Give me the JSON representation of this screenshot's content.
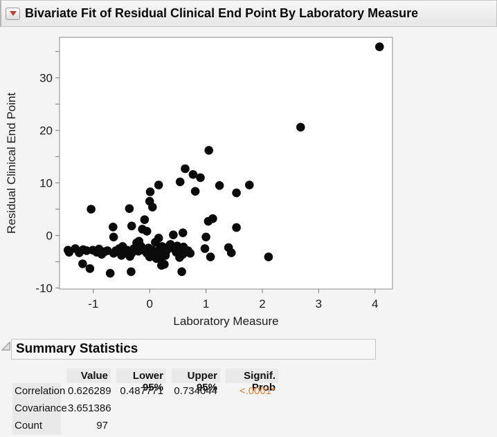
{
  "window": {
    "title": "Bivariate Fit of Residual Clinical End Point By Laboratory Measure"
  },
  "chart_data": {
    "type": "scatter",
    "xlabel": "Laboratory Measure",
    "ylabel": "Residual Clinical End Point",
    "xlim": [
      -1.6,
      4.31
    ],
    "ylim": [
      -10.2,
      37.7
    ],
    "x_ticks": [
      -1,
      0,
      1,
      2,
      3,
      4
    ],
    "y_ticks": [
      -10,
      0,
      10,
      20,
      30
    ],
    "y_minor_ticks": [
      -5,
      5,
      15,
      25,
      35
    ],
    "grid": false,
    "marker_color": "#0a0a0a",
    "frame_color": "#a3a3a3",
    "plot_bg": "#ffffff",
    "points": [
      [
        4.08,
        35.9
      ],
      [
        2.68,
        20.6
      ],
      [
        1.05,
        16.2
      ],
      [
        0.63,
        12.7
      ],
      [
        0.77,
        11.6
      ],
      [
        0.9,
        11.0
      ],
      [
        0.54,
        10.2
      ],
      [
        1.24,
        9.5
      ],
      [
        0.16,
        9.6
      ],
      [
        1.77,
        9.6
      ],
      [
        1.54,
        8.1
      ],
      [
        0.81,
        8.4
      ],
      [
        0.01,
        8.3
      ],
      [
        0.0,
        6.5
      ],
      [
        0.05,
        5.4
      ],
      [
        -0.36,
        5.1
      ],
      [
        -1.04,
        5.0
      ],
      [
        -0.09,
        3.0
      ],
      [
        1.12,
        3.2
      ],
      [
        1.04,
        2.7
      ],
      [
        1.54,
        1.5
      ],
      [
        -0.65,
        1.6
      ],
      [
        -0.32,
        1.8
      ],
      [
        -0.13,
        1.2
      ],
      [
        -0.05,
        0.8
      ],
      [
        0.42,
        0.1
      ],
      [
        0.59,
        0.5
      ],
      [
        -0.64,
        -0.3
      ],
      [
        1.0,
        -0.3
      ],
      [
        0.16,
        -0.5
      ],
      [
        -1.45,
        -2.8
      ],
      [
        -1.43,
        -3.2
      ],
      [
        -1.32,
        -2.5
      ],
      [
        -1.25,
        -3.3
      ],
      [
        -1.18,
        -2.7
      ],
      [
        -1.12,
        -2.9
      ],
      [
        -1.01,
        -2.8
      ],
      [
        -0.94,
        -3.2
      ],
      [
        -0.9,
        -2.6
      ],
      [
        -0.85,
        -3.6
      ],
      [
        -0.8,
        -3.1
      ],
      [
        -0.75,
        -2.9
      ],
      [
        -0.64,
        -3.4
      ],
      [
        -0.6,
        -2.9
      ],
      [
        -0.54,
        -2.5
      ],
      [
        -0.5,
        -3.8
      ],
      [
        -0.48,
        -2.1
      ],
      [
        -0.45,
        -3.3
      ],
      [
        -0.4,
        -2.8
      ],
      [
        -0.35,
        -4.0
      ],
      [
        -0.32,
        -3.4
      ],
      [
        -0.28,
        -2.5
      ],
      [
        -0.23,
        -1.4
      ],
      [
        -0.2,
        -3.0
      ],
      [
        -0.19,
        -1.1
      ],
      [
        -0.15,
        -2.1
      ],
      [
        -0.11,
        -2.8
      ],
      [
        -0.05,
        -3.4
      ],
      [
        -0.02,
        -2.4
      ],
      [
        0.0,
        -4.1
      ],
      [
        0.04,
        -2.8
      ],
      [
        0.05,
        -3.7
      ],
      [
        0.08,
        -3.0
      ],
      [
        0.1,
        -1.3
      ],
      [
        0.12,
        -4.4
      ],
      [
        0.14,
        -3.2
      ],
      [
        0.18,
        -2.6
      ],
      [
        0.21,
        -4.2
      ],
      [
        0.22,
        -2.1
      ],
      [
        0.28,
        -3.8
      ],
      [
        0.3,
        -2.9
      ],
      [
        0.36,
        -1.8
      ],
      [
        0.37,
        -1.7
      ],
      [
        0.41,
        -2.4
      ],
      [
        0.44,
        -2.5
      ],
      [
        0.47,
        -3.2
      ],
      [
        0.49,
        -2.0
      ],
      [
        0.53,
        -4.2
      ],
      [
        0.54,
        -2.8
      ],
      [
        0.56,
        -2.6
      ],
      [
        0.59,
        -3.6
      ],
      [
        0.6,
        -2.2
      ],
      [
        0.63,
        -3.2
      ],
      [
        0.68,
        -2.9
      ],
      [
        0.72,
        -3.4
      ],
      [
        0.98,
        -2.5
      ],
      [
        1.08,
        -4.1
      ],
      [
        1.4,
        -2.3
      ],
      [
        1.45,
        -3.3
      ],
      [
        2.11,
        -4.1
      ],
      [
        -1.19,
        -5.4
      ],
      [
        -1.06,
        -6.3
      ],
      [
        -0.7,
        -7.2
      ],
      [
        -0.33,
        -6.9
      ],
      [
        0.26,
        -5.5
      ],
      [
        0.57,
        -6.9
      ],
      [
        0.21,
        -5.7
      ]
    ]
  },
  "summary": {
    "header": "Summary Statistics",
    "columns": [
      "",
      "Value",
      "Lower 95%",
      "Upper 95%",
      "Signif. Prob"
    ],
    "rows": [
      {
        "label": "Correlation",
        "value": "0.626289",
        "lower": "0.487771",
        "upper": "0.734044",
        "signif": "<.0001*"
      },
      {
        "label": "Covariance",
        "value": "3.651386",
        "lower": "",
        "upper": "",
        "signif": ""
      },
      {
        "label": "Count",
        "value": "97",
        "lower": "",
        "upper": "",
        "signif": ""
      }
    ],
    "signif_color": "#e87f2e"
  }
}
